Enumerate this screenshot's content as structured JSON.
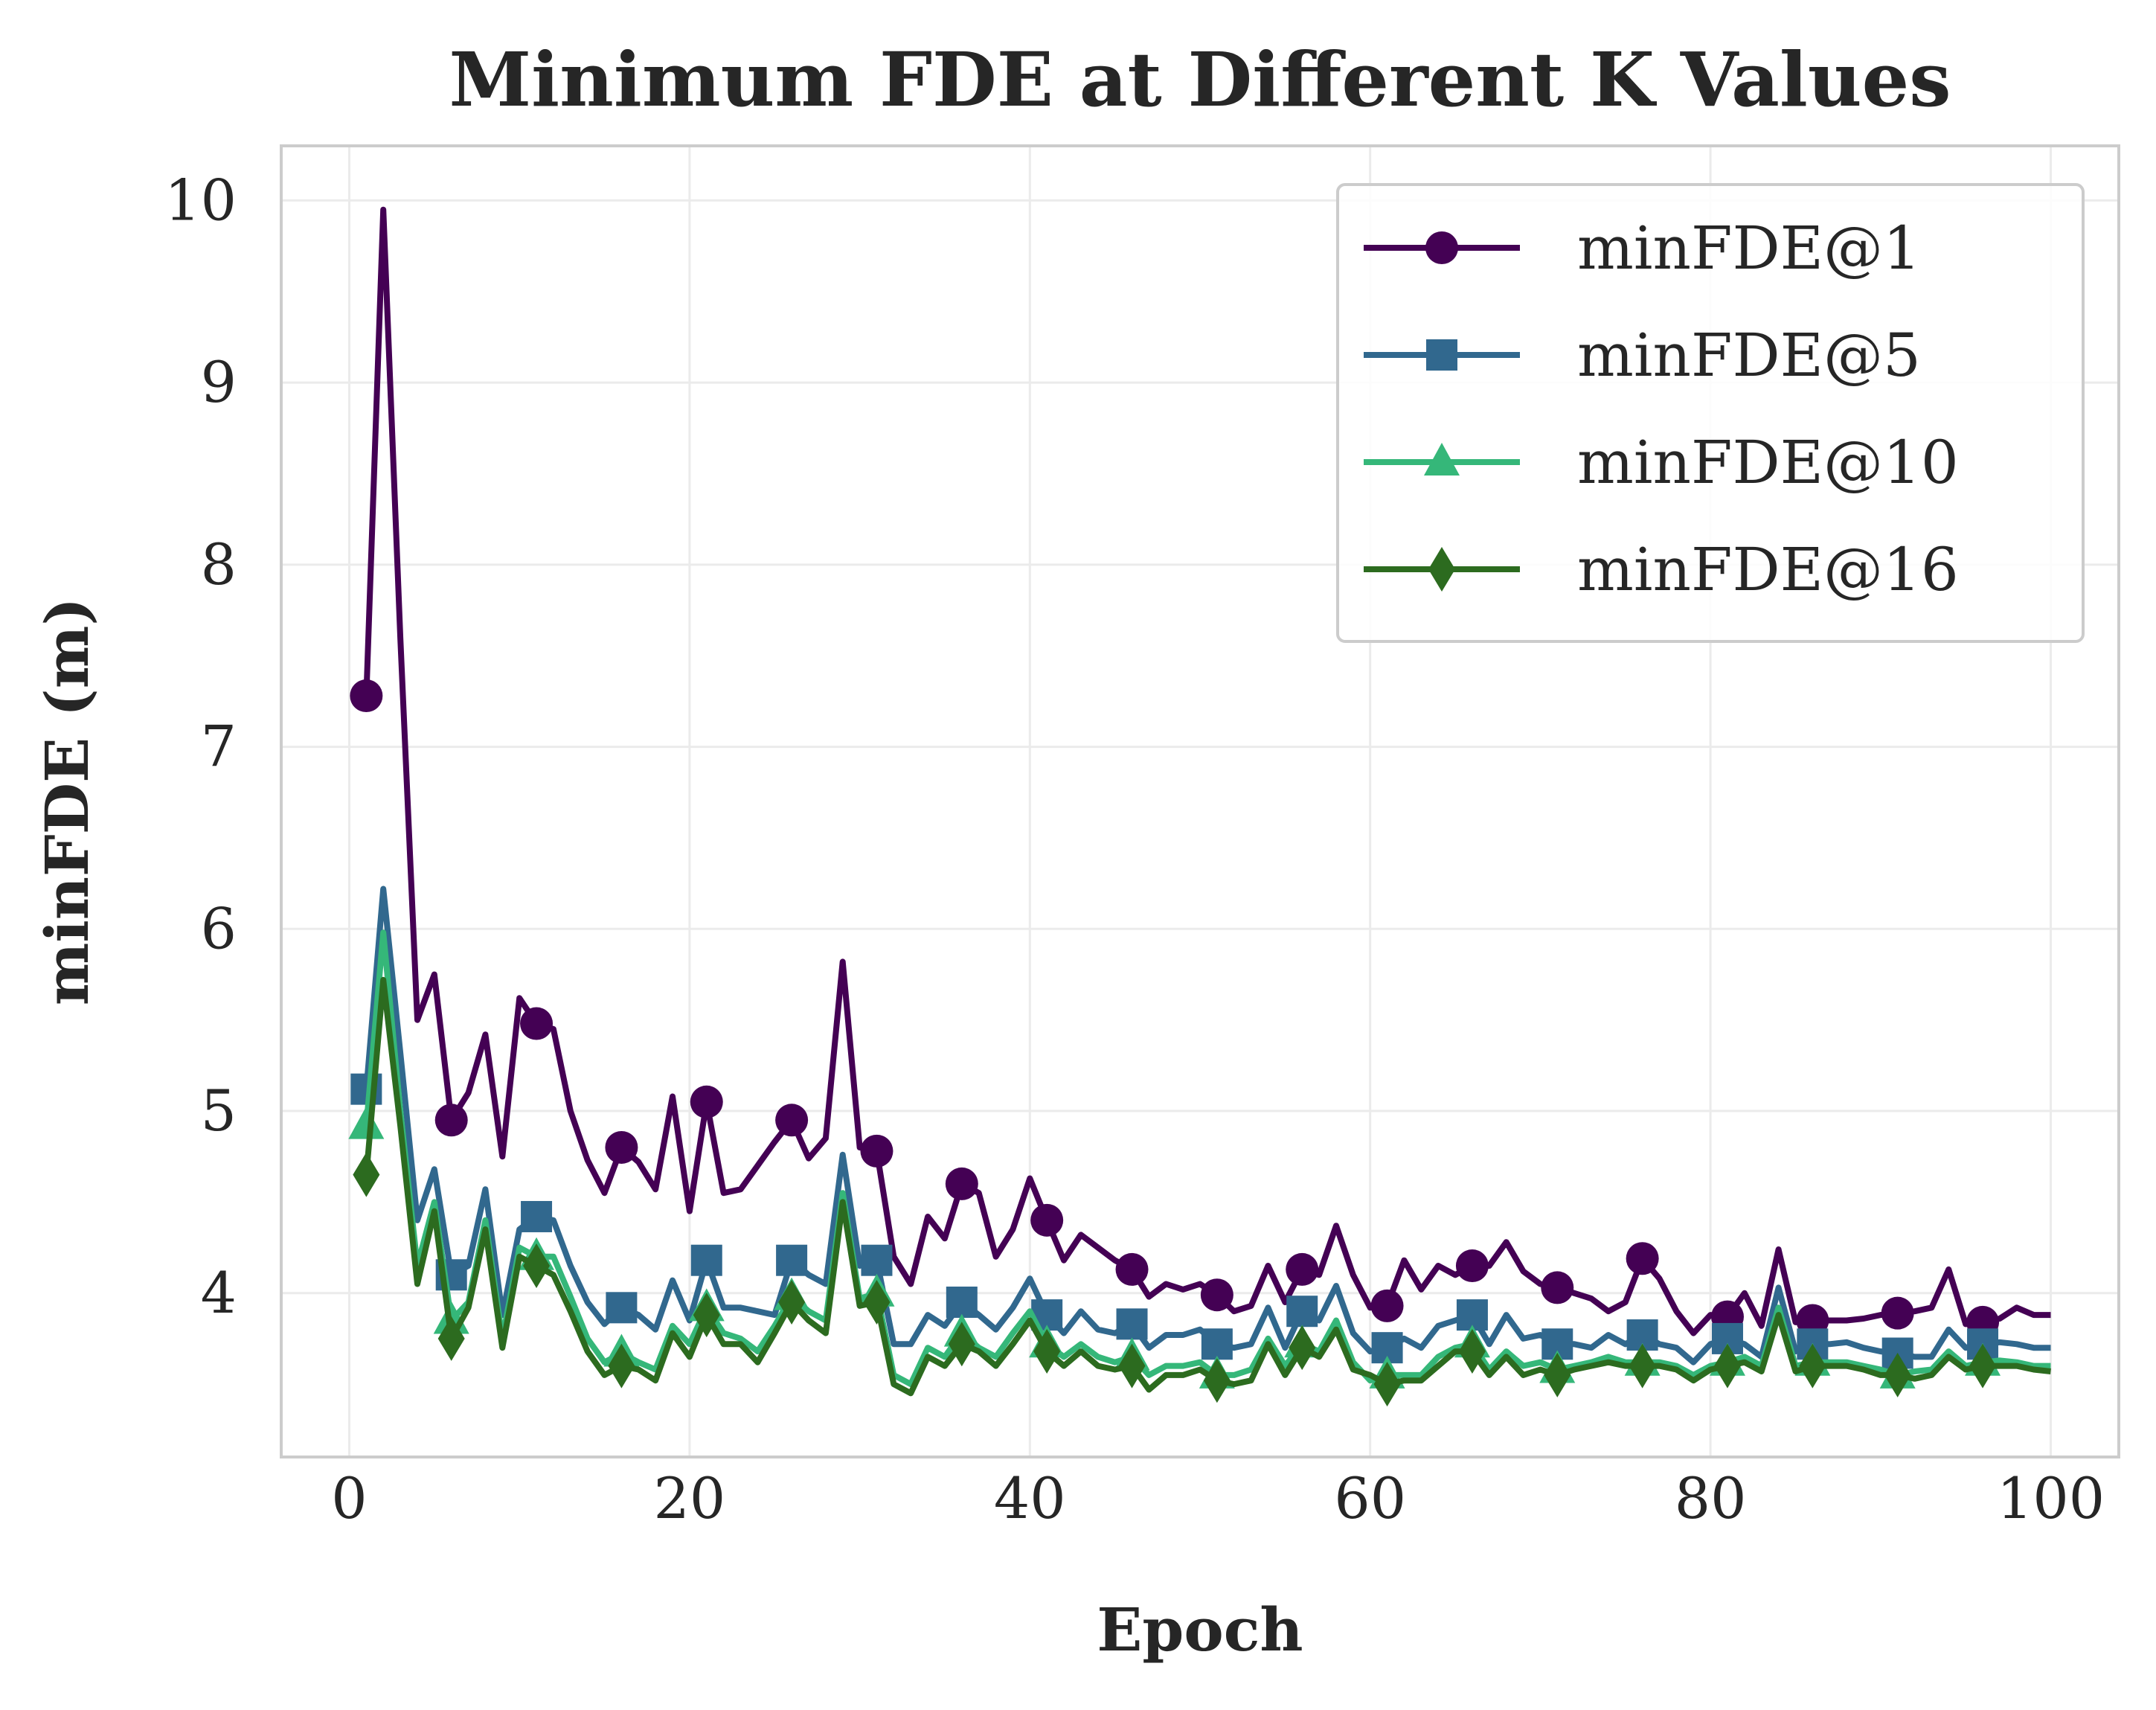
{
  "chart_data": {
    "type": "line",
    "title": "Minimum FDE at Different K Values",
    "xlabel": "Epoch",
    "ylabel": "minFDE (m)",
    "xlim": [
      -4,
      104
    ],
    "ylim": [
      3.1,
      10.3
    ],
    "xticks": [
      0,
      20,
      40,
      60,
      80,
      100
    ],
    "yticks": [
      4,
      5,
      6,
      7,
      8,
      9,
      10
    ],
    "xtick_labels": [
      "0",
      "20",
      "40",
      "60",
      "80",
      "100"
    ],
    "ytick_labels": [
      "4",
      "5",
      "6",
      "7",
      "8",
      "9",
      "10"
    ],
    "grid": true,
    "legend_position": "top-right",
    "marker_every": 5,
    "x": [
      1,
      2,
      3,
      4,
      5,
      6,
      7,
      8,
      9,
      10,
      11,
      12,
      13,
      14,
      15,
      16,
      17,
      18,
      19,
      20,
      21,
      22,
      23,
      24,
      25,
      26,
      27,
      28,
      29,
      30,
      31,
      32,
      33,
      34,
      35,
      36,
      37,
      38,
      39,
      40,
      41,
      42,
      43,
      44,
      45,
      46,
      47,
      48,
      49,
      50,
      51,
      52,
      53,
      54,
      55,
      56,
      57,
      58,
      59,
      60,
      61,
      62,
      63,
      64,
      65,
      66,
      67,
      68,
      69,
      70,
      71,
      72,
      73,
      74,
      75,
      76,
      77,
      78,
      79,
      80,
      81,
      82,
      83,
      84,
      85,
      86,
      87,
      88,
      89,
      90,
      91,
      92,
      93,
      94,
      95,
      96,
      97,
      98,
      99,
      100
    ],
    "series": [
      {
        "name": "minFDE@1",
        "color": "#440154",
        "marker": "circle",
        "values": [
          7.28,
          9.95,
          7.6,
          5.5,
          5.75,
          4.95,
          5.1,
          5.42,
          4.75,
          5.62,
          5.48,
          5.45,
          5.0,
          4.73,
          4.55,
          4.8,
          4.72,
          4.57,
          5.08,
          4.45,
          5.05,
          4.55,
          4.57,
          4.7,
          4.83,
          4.95,
          4.74,
          4.85,
          5.82,
          4.8,
          4.78,
          4.2,
          4.05,
          4.42,
          4.3,
          4.6,
          4.55,
          4.2,
          4.35,
          4.63,
          4.4,
          4.18,
          4.32,
          4.25,
          4.18,
          4.13,
          3.98,
          4.05,
          4.02,
          4.05,
          3.99,
          3.9,
          3.93,
          4.15,
          3.95,
          4.13,
          4.1,
          4.37,
          4.1,
          3.92,
          3.93,
          4.18,
          4.02,
          4.15,
          4.1,
          4.15,
          4.15,
          4.28,
          4.12,
          4.05,
          4.03,
          4.0,
          3.97,
          3.9,
          3.95,
          4.19,
          4.08,
          3.9,
          3.78,
          3.88,
          3.87,
          4.0,
          3.82,
          4.24,
          3.84,
          3.85,
          3.85,
          3.85,
          3.86,
          3.88,
          3.89,
          3.9,
          3.92,
          4.13,
          3.83,
          3.84,
          3.86,
          3.92,
          3.88,
          3.88
        ]
      },
      {
        "name": "minFDE@5",
        "color": "#31688e",
        "marker": "square",
        "values": [
          5.12,
          6.22,
          5.32,
          4.4,
          4.68,
          4.1,
          4.15,
          4.57,
          3.88,
          4.35,
          4.42,
          4.4,
          4.15,
          3.95,
          3.83,
          3.92,
          3.88,
          3.8,
          4.07,
          3.85,
          4.18,
          3.92,
          3.92,
          3.9,
          3.88,
          4.18,
          4.1,
          4.05,
          4.76,
          4.15,
          4.18,
          3.72,
          3.72,
          3.88,
          3.82,
          3.95,
          3.88,
          3.8,
          3.92,
          4.08,
          3.88,
          3.78,
          3.9,
          3.8,
          3.78,
          3.83,
          3.7,
          3.77,
          3.77,
          3.8,
          3.72,
          3.7,
          3.72,
          3.92,
          3.7,
          3.9,
          3.85,
          4.04,
          3.78,
          3.68,
          3.7,
          3.75,
          3.7,
          3.82,
          3.85,
          3.88,
          3.72,
          3.88,
          3.75,
          3.77,
          3.72,
          3.72,
          3.7,
          3.77,
          3.72,
          3.77,
          3.72,
          3.7,
          3.62,
          3.72,
          3.75,
          3.72,
          3.65,
          4.03,
          3.68,
          3.72,
          3.72,
          3.73,
          3.7,
          3.68,
          3.67,
          3.65,
          3.65,
          3.8,
          3.7,
          3.72,
          3.73,
          3.72,
          3.7,
          3.7
        ]
      },
      {
        "name": "minFDE@10",
        "color": "#35b779",
        "marker": "triangle",
        "values": [
          4.92,
          5.98,
          5.0,
          4.15,
          4.5,
          3.85,
          3.95,
          4.4,
          3.75,
          4.25,
          4.2,
          4.2,
          3.98,
          3.75,
          3.62,
          3.67,
          3.62,
          3.58,
          3.82,
          3.72,
          3.92,
          3.78,
          3.75,
          3.68,
          3.82,
          3.98,
          3.9,
          3.85,
          4.55,
          3.97,
          4.0,
          3.55,
          3.5,
          3.7,
          3.65,
          3.78,
          3.7,
          3.65,
          3.78,
          3.9,
          3.72,
          3.65,
          3.72,
          3.65,
          3.62,
          3.65,
          3.55,
          3.6,
          3.6,
          3.62,
          3.55,
          3.55,
          3.58,
          3.75,
          3.6,
          3.72,
          3.68,
          3.85,
          3.62,
          3.52,
          3.55,
          3.55,
          3.55,
          3.65,
          3.7,
          3.72,
          3.58,
          3.68,
          3.6,
          3.62,
          3.58,
          3.6,
          3.62,
          3.65,
          3.62,
          3.62,
          3.62,
          3.6,
          3.55,
          3.6,
          3.62,
          3.65,
          3.6,
          3.92,
          3.6,
          3.62,
          3.62,
          3.62,
          3.6,
          3.58,
          3.55,
          3.57,
          3.58,
          3.68,
          3.6,
          3.62,
          3.63,
          3.62,
          3.6,
          3.6
        ]
      },
      {
        "name": "minFDE@16",
        "color": "#2c6b1f",
        "marker": "diamond",
        "values": [
          4.65,
          5.72,
          4.92,
          4.05,
          4.45,
          3.75,
          3.92,
          4.35,
          3.7,
          4.2,
          4.15,
          4.1,
          3.9,
          3.68,
          3.55,
          3.6,
          3.58,
          3.52,
          3.78,
          3.65,
          3.88,
          3.72,
          3.72,
          3.62,
          3.78,
          3.95,
          3.85,
          3.78,
          4.5,
          3.93,
          3.95,
          3.5,
          3.45,
          3.65,
          3.6,
          3.72,
          3.68,
          3.6,
          3.72,
          3.85,
          3.68,
          3.6,
          3.68,
          3.6,
          3.58,
          3.6,
          3.47,
          3.55,
          3.55,
          3.58,
          3.52,
          3.5,
          3.52,
          3.72,
          3.55,
          3.7,
          3.65,
          3.8,
          3.58,
          3.55,
          3.5,
          3.52,
          3.52,
          3.6,
          3.68,
          3.68,
          3.55,
          3.65,
          3.55,
          3.58,
          3.55,
          3.58,
          3.6,
          3.62,
          3.6,
          3.6,
          3.6,
          3.58,
          3.52,
          3.58,
          3.6,
          3.62,
          3.57,
          3.88,
          3.57,
          3.6,
          3.6,
          3.6,
          3.58,
          3.55,
          3.55,
          3.53,
          3.55,
          3.65,
          3.58,
          3.6,
          3.6,
          3.6,
          3.58,
          3.57
        ]
      }
    ]
  }
}
